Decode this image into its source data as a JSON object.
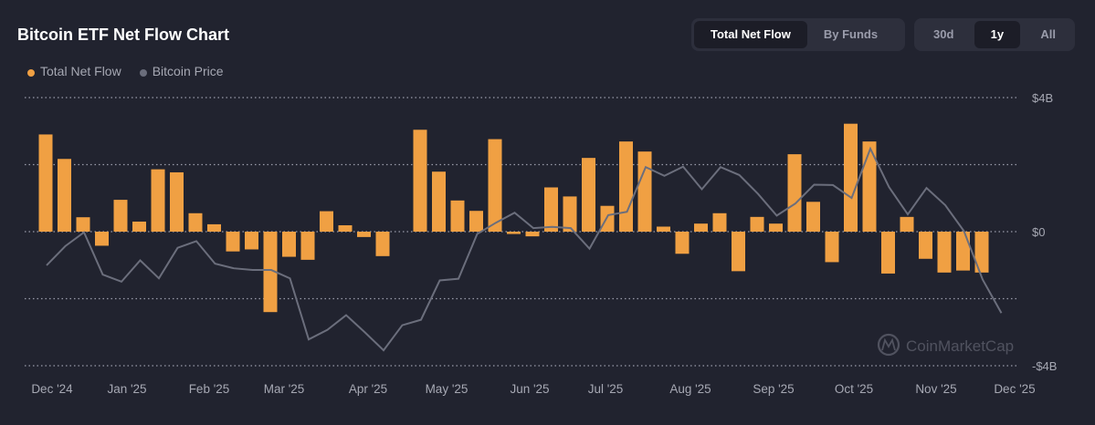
{
  "chart_data": {
    "type": "bar",
    "title": "Bitcoin ETF Net Flow Chart",
    "legend": [
      {
        "name": "Total Net Flow",
        "color": "#f0a043"
      },
      {
        "name": "Bitcoin Price",
        "color": "#6b6e7c"
      }
    ],
    "legend_placement": "top-left",
    "y_ticks": [
      "$4B",
      "$0",
      "-$4B"
    ],
    "ylim": [
      -4,
      4
    ],
    "y_unit": "billion USD",
    "grid": true,
    "x_ticks": [
      "Dec '24",
      "Jan '25",
      "Feb '25",
      "Mar '25",
      "Apr '25",
      "May '25",
      "Jun '25",
      "Jul '25",
      "Aug '25",
      "Sep '25",
      "Oct '25",
      "Nov '25",
      "Dec '25"
    ],
    "series": [
      {
        "name": "Total Net Flow",
        "type": "bar",
        "values": [
          2.9,
          2.17,
          0.43,
          -0.42,
          0.95,
          0.3,
          1.86,
          1.77,
          0.55,
          0.22,
          -0.59,
          -0.53,
          -2.4,
          -0.75,
          -0.84,
          0.61,
          0.19,
          -0.16,
          -0.73,
          0,
          3.04,
          1.79,
          0.93,
          0.62,
          2.76,
          -0.07,
          -0.14,
          1.32,
          1.05,
          2.2,
          0.77,
          2.69,
          2.39,
          0.15,
          -0.66,
          0.24,
          0.55,
          -1.18,
          0.44,
          0.24,
          2.31,
          0.89,
          -0.91,
          3.22,
          2.69,
          -1.25,
          0.44,
          -0.81,
          -1.22,
          -1.16,
          -1.22
        ]
      },
      {
        "name": "Bitcoin Price",
        "type": "line",
        "values": [
          96.1,
          100.7,
          104,
          93.9,
          92.2,
          97.3,
          93,
          100.3,
          101.9,
          96.5,
          95.4,
          95,
          95,
          93,
          78.4,
          80.7,
          84.2,
          80.1,
          75.8,
          81.8,
          83.1,
          92.5,
          92.9,
          103.6,
          106.3,
          108.7,
          105,
          105.3,
          105,
          100.1,
          108.1,
          108.9,
          119.6,
          117.5,
          119.7,
          114.3,
          119.6,
          117.7,
          113.2,
          108,
          110.9,
          115.4,
          115.3,
          112.2,
          124,
          114.8,
          108.3,
          114.6,
          110.5,
          104.3,
          92.7,
          84.7
        ]
      }
    ]
  },
  "controls": {
    "view_tabs": [
      {
        "label": "Total Net Flow",
        "active": true
      },
      {
        "label": "By Funds",
        "active": false
      }
    ],
    "range_tabs": [
      {
        "label": "30d",
        "active": false
      },
      {
        "label": "1y",
        "active": true
      },
      {
        "label": "All",
        "active": false
      }
    ]
  },
  "watermark": "CoinMarketCap",
  "colors": {
    "background": "#21232f",
    "bar": "#f0a043",
    "line": "#6b6e7c",
    "grid": "#9a9cab"
  }
}
